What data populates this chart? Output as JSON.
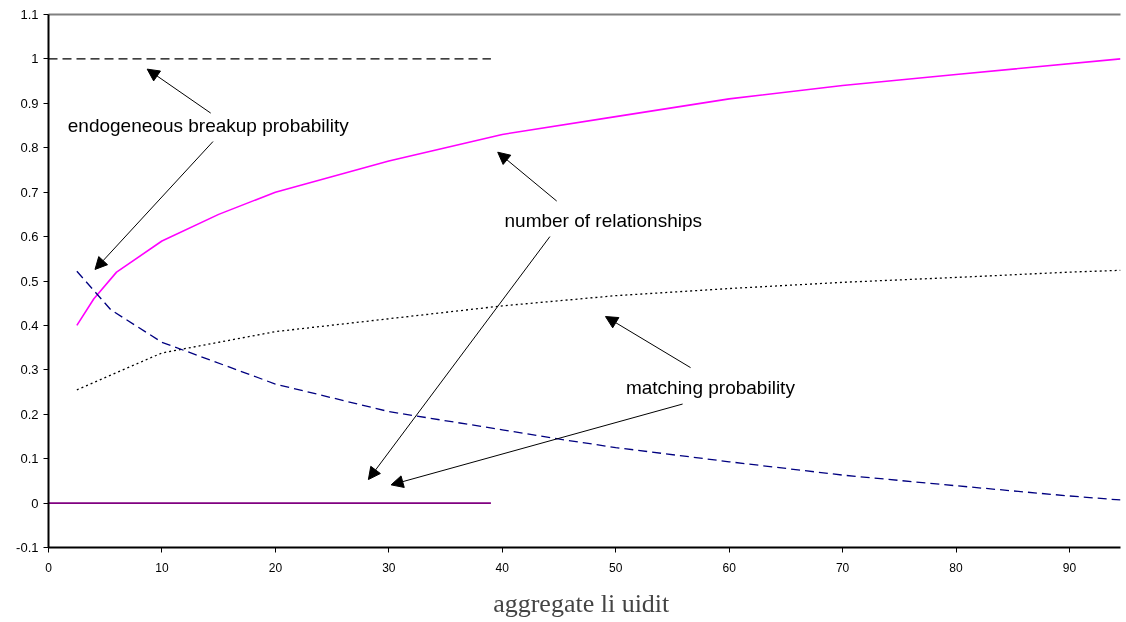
{
  "chart_data": {
    "type": "line",
    "xlabel": "aggregate li  uidit",
    "xlim": [
      0,
      94.5
    ],
    "ylim": [
      -0.1,
      1.1
    ],
    "xticks": [
      0,
      10,
      20,
      30,
      40,
      50,
      60,
      70,
      80,
      90
    ],
    "yticks": [
      -0.1,
      0,
      0.1,
      0.2,
      0.3,
      0.4,
      0.5,
      0.6,
      0.7,
      0.8,
      0.9,
      1,
      1.1
    ],
    "grid": false,
    "series": [
      {
        "color": "#ff00ff",
        "line_style": "solid",
        "x": [
          2.5,
          4,
          6,
          10,
          15,
          20,
          30,
          40,
          50,
          60,
          70,
          80,
          94.5
        ],
        "values": [
          0.4,
          0.46,
          0.52,
          0.59,
          0.65,
          0.7,
          0.77,
          0.83,
          0.87,
          0.91,
          0.94,
          0.965,
          1.0
        ]
      },
      {
        "color": "#000000",
        "line_style": "dotted",
        "x": [
          2.5,
          10,
          20,
          30,
          40,
          50,
          60,
          70,
          80,
          90,
          94.5
        ],
        "values": [
          0.255,
          0.338,
          0.386,
          0.415,
          0.444,
          0.467,
          0.483,
          0.497,
          0.508,
          0.52,
          0.524
        ]
      },
      {
        "color": "#000080",
        "line_style": "dashed",
        "x": [
          2.5,
          5.5,
          10,
          20,
          30,
          40,
          44.8,
          50,
          60,
          70,
          80,
          90,
          94.5
        ],
        "values": [
          0.522,
          0.435,
          0.362,
          0.268,
          0.206,
          0.165,
          0.145,
          0.125,
          0.093,
          0.063,
          0.039,
          0.016,
          0.007
        ]
      },
      {
        "color": "#000000",
        "line_style": "dashed",
        "x": [
          0,
          39
        ],
        "values": [
          1,
          1
        ]
      },
      {
        "color": "#800080",
        "line_style": "solid",
        "x": [
          0,
          39
        ],
        "values": [
          0,
          0
        ]
      }
    ],
    "annotations": [
      "endogeneous breakup probability",
      "number of relationships",
      "matching probability"
    ]
  }
}
